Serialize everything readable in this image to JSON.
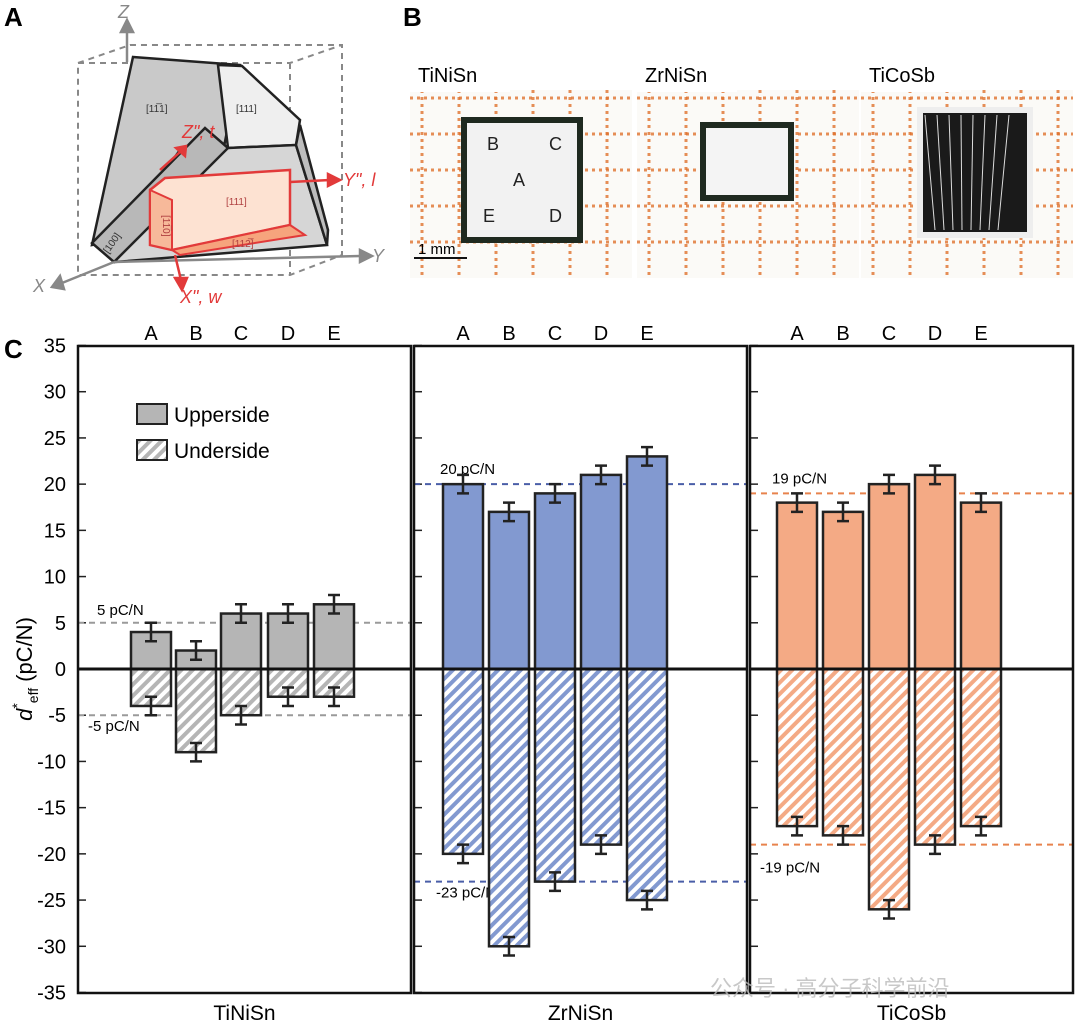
{
  "panels": {
    "a": {
      "label": "A",
      "axes": {
        "z": "Z",
        "y": "Y",
        "x": "X"
      },
      "faces": [
        "[11̅1]",
        "[111]",
        "[100]",
        "[111]",
        "[11̅0]",
        "[112̅]"
      ],
      "sample_axes": {
        "z": "Z\", t",
        "y": "Y\", l",
        "x": "X\", w"
      }
    },
    "b": {
      "label": "B",
      "samples": [
        "TiNiSn",
        "ZrNiSn",
        "TiCoSb"
      ],
      "spots": [
        "A",
        "B",
        "C",
        "D",
        "E"
      ],
      "scale_bar": "1 mm"
    },
    "c": {
      "label": "C"
    }
  },
  "chart_data": {
    "type": "bar",
    "ylabel": "d*eff (pC/N)",
    "ylabel_main": "d",
    "ylabel_sup": "*",
    "ylabel_sub": "eff",
    "ylabel_unit": "(pC/N)",
    "ylim": [
      -35,
      35
    ],
    "yticks": [
      35,
      30,
      25,
      20,
      15,
      10,
      5,
      0,
      -5,
      -10,
      -15,
      -20,
      -25,
      -30,
      -35
    ],
    "legend": {
      "position": "top-left of first panel",
      "upper": "Upperside",
      "under": "Underside"
    },
    "categories": [
      "A",
      "B",
      "C",
      "D",
      "E"
    ],
    "subplots": [
      {
        "xlabel": "TiNiSn",
        "color": "#b5b5b5",
        "line_color": "#9a9a9a",
        "upperside": [
          4,
          2,
          6,
          6,
          7
        ],
        "underside": [
          -4,
          -9,
          -5,
          -3,
          -3
        ],
        "error": 1,
        "reference_lines": [
          {
            "value": 5,
            "label": "5 pC/N"
          },
          {
            "value": -5,
            "label": "-5 pC/N"
          }
        ]
      },
      {
        "xlabel": "ZrNiSn",
        "color": "#8299d0",
        "line_color": "#4a5ea8",
        "upperside": [
          20,
          17,
          19,
          21,
          23
        ],
        "underside": [
          -20,
          -30,
          -23,
          -19,
          -25
        ],
        "error": 1,
        "reference_lines": [
          {
            "value": 20,
            "label": "20 pC/N"
          },
          {
            "value": -23,
            "label": "-23 pC/N"
          }
        ]
      },
      {
        "xlabel": "TiCoSb",
        "color": "#f4aa85",
        "line_color": "#e8834d",
        "upperside": [
          18,
          17,
          20,
          21,
          18
        ],
        "underside": [
          -17,
          -18,
          -26,
          -19,
          -17
        ],
        "error": 1,
        "reference_lines": [
          {
            "value": 19,
            "label": "19 pC/N"
          },
          {
            "value": -19,
            "label": "-19 pC/N"
          }
        ]
      }
    ]
  },
  "watermark": "公众号 · 高分子科学前沿"
}
